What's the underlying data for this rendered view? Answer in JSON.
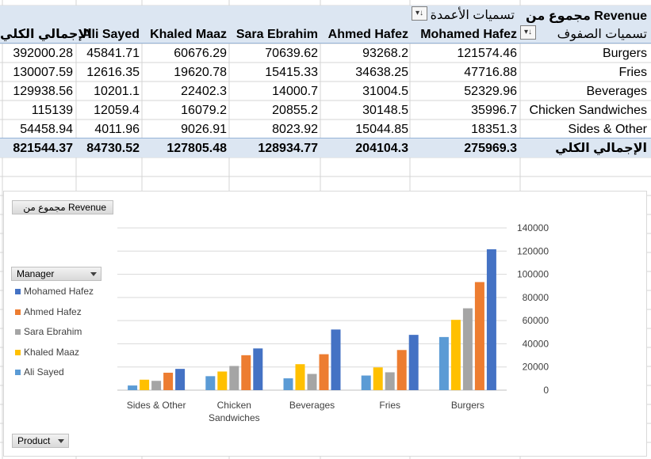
{
  "pivot": {
    "values_caption": "مجموع من Revenue",
    "columns_caption": "تسميات الأعمدة",
    "rows_caption": "تسميات الصفوف",
    "grand_total_label": "الإجمالي الكلي",
    "managers": [
      "Mohamed Hafez",
      "Ahmed Hafez",
      "Sara Ebrahim",
      "Khaled Maaz",
      "Ali Sayed"
    ],
    "rows": [
      {
        "label": "Burgers",
        "values": [
          "121574.46",
          "93268.2",
          "70639.62",
          "60676.29",
          "45841.71"
        ],
        "total": "392000.28"
      },
      {
        "label": "Fries",
        "values": [
          "47716.88",
          "34638.25",
          "15415.33",
          "19620.78",
          "12616.35"
        ],
        "total": "130007.59"
      },
      {
        "label": "Beverages",
        "values": [
          "52329.96",
          "31004.5",
          "14000.7",
          "22402.3",
          "10201.1"
        ],
        "total": "129938.56"
      },
      {
        "label": "Chicken Sandwiches",
        "values": [
          "35996.7",
          "30148.5",
          "20855.2",
          "16079.2",
          "12059.4"
        ],
        "total": "115139"
      },
      {
        "label": "Sides & Other",
        "values": [
          "18351.3",
          "15044.85",
          "8023.92",
          "9026.91",
          "4011.96"
        ],
        "total": "54458.94"
      }
    ],
    "totals": {
      "label": "الإجمالي الكلي",
      "values": [
        "275969.3",
        "204104.3",
        "128934.77",
        "127805.48",
        "84730.52"
      ],
      "total": "821544.37"
    }
  },
  "chart_buttons": {
    "values_field": "مجموع من Revenue",
    "legend_field": "Manager",
    "axis_field": "Product"
  },
  "chart_data": {
    "type": "bar",
    "categories": [
      "Sides & Other",
      "Chicken Sandwiches",
      "Beverages",
      "Fries",
      "Burgers"
    ],
    "category_labels": [
      [
        "Sides & Other"
      ],
      [
        "Chicken",
        "Sandwiches"
      ],
      [
        "Beverages"
      ],
      [
        "Fries"
      ],
      [
        "Burgers"
      ]
    ],
    "series": [
      {
        "name": "Ali Sayed",
        "color": "#5b9bd5",
        "values": [
          4011.96,
          12059.4,
          10201.1,
          12616.35,
          45841.71
        ]
      },
      {
        "name": "Khaled Maaz",
        "color": "#ffc000",
        "values": [
          9026.91,
          16079.2,
          22402.3,
          19620.78,
          60676.29
        ]
      },
      {
        "name": "Sara Ebrahim",
        "color": "#a5a5a5",
        "values": [
          8023.92,
          20855.2,
          14000.7,
          15415.33,
          70639.62
        ]
      },
      {
        "name": "Ahmed Hafez",
        "color": "#ed7d31",
        "values": [
          15044.85,
          30148.5,
          31004.5,
          34638.25,
          93268.2
        ]
      },
      {
        "name": "Mohamed Hafez",
        "color": "#4472c4",
        "values": [
          18351.3,
          35996.7,
          52329.96,
          47716.88,
          121574.46
        ]
      }
    ],
    "legend_order": [
      "Mohamed Hafez",
      "Ahmed Hafez",
      "Sara Ebrahim",
      "Khaled Maaz",
      "Ali Sayed"
    ],
    "ylim": [
      0,
      140000
    ],
    "yticks": [
      0,
      20000,
      40000,
      60000,
      80000,
      100000,
      120000,
      140000
    ],
    "y_axis_side": "right",
    "legend_position": "left",
    "grid": true,
    "title": "",
    "xlabel": "",
    "ylabel": ""
  }
}
